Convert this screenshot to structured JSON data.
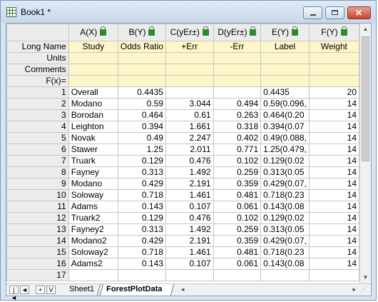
{
  "window": {
    "title": "Book1 *",
    "min_glyph": "",
    "max_glyph": "",
    "close_glyph": "✕"
  },
  "sheet": {
    "columns": [
      {
        "name": "A(X)",
        "width": 70
      },
      {
        "name": "B(Y)",
        "width": 66
      },
      {
        "name": "C(yEr±)",
        "width": 67
      },
      {
        "name": "D(yEr±)",
        "width": 67
      },
      {
        "name": "E(Y)",
        "width": 67
      },
      {
        "name": "F(Y)",
        "width": 72
      }
    ],
    "meta_labels": [
      "Long Name",
      "Units",
      "Comments",
      "F(x)="
    ],
    "long_names": [
      "Study",
      "Odds Ratio",
      "+Err",
      "-Err",
      "Label",
      "Weight"
    ],
    "rows": [
      [
        "1",
        "Overall",
        "0.4435",
        "",
        "",
        "0.4435",
        "20"
      ],
      [
        "2",
        "Modano",
        "0.59",
        "3.044",
        "0.494",
        "0.59(0.096,",
        "14"
      ],
      [
        "3",
        "Borodan",
        "0.464",
        "0.61",
        "0.263",
        "0.464(0.20",
        "14"
      ],
      [
        "4",
        "Leighton",
        "0.394",
        "1.661",
        "0.318",
        "0.394(0.07",
        "14"
      ],
      [
        "5",
        "Novak",
        "0.49",
        "2.247",
        "0.402",
        "0.49(0.088,",
        "14"
      ],
      [
        "6",
        "Stawer",
        "1.25",
        "2.011",
        "0.771",
        "1.25(0.479,",
        "14"
      ],
      [
        "7",
        "Truark",
        "0.129",
        "0.476",
        "0.102",
        "0.129(0.02",
        "14"
      ],
      [
        "8",
        "Fayney",
        "0.313",
        "1.492",
        "0.259",
        "0.313(0.05",
        "14"
      ],
      [
        "9",
        "Modano",
        "0.429",
        "2.191",
        "0.359",
        "0.429(0.07,",
        "14"
      ],
      [
        "10",
        "Soloway",
        "0.718",
        "1.461",
        "0.481",
        "0.718(0.23",
        "14"
      ],
      [
        "11",
        "Adams",
        "0.143",
        "0.107",
        "0.061",
        "0.143(0.08",
        "14"
      ],
      [
        "12",
        "Truark2",
        "0.129",
        "0.476",
        "0.102",
        "0.129(0.02",
        "14"
      ],
      [
        "13",
        "Fayney2",
        "0.313",
        "1.492",
        "0.259",
        "0.313(0.05",
        "14"
      ],
      [
        "14",
        "Modano2",
        "0.429",
        "2.191",
        "0.359",
        "0.429(0.07,",
        "14"
      ],
      [
        "15",
        "Soloway2",
        "0.718",
        "1.461",
        "0.481",
        "0.718(0.23",
        "14"
      ],
      [
        "16",
        "Adams2",
        "0.143",
        "0.107",
        "0.061",
        "0.143(0.08",
        "14"
      ],
      [
        "17",
        "",
        "",
        "",
        "",
        "",
        ""
      ]
    ]
  },
  "tabs": {
    "sheet1": "Sheet1",
    "forest": "ForestPlotData"
  },
  "nav": {
    "first": "|◄",
    "prev": "◄",
    "next": "+",
    "last": "V"
  },
  "colors": {
    "meta_bg": "#fdf6c8",
    "header_bg": "#ececec",
    "lock_icon": "#2f8a2f"
  }
}
